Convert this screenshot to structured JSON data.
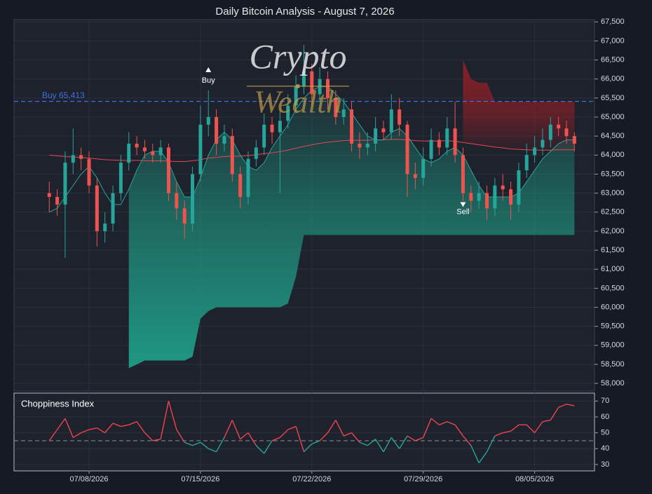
{
  "chart_data": [
    {
      "type": "candlestick",
      "title": "Daily Bitcoin Analysis - August 7, 2026",
      "watermark": [
        "Crypto",
        "Wealth"
      ],
      "categories": [
        null,
        null,
        null,
        null,
        null,
        "07/08/2026",
        null,
        null,
        null,
        null,
        null,
        null,
        null,
        null,
        null,
        null,
        null,
        null,
        null,
        "07/15/2026",
        null,
        null,
        null,
        null,
        null,
        null,
        null,
        null,
        null,
        null,
        null,
        null,
        null,
        "07/22/2026",
        null,
        null,
        null,
        null,
        null,
        null,
        null,
        null,
        null,
        null,
        null,
        null,
        null,
        "07/29/2026",
        null,
        null,
        null,
        null,
        null,
        null,
        null,
        null,
        null,
        null,
        null,
        null,
        null,
        "08/05/2026",
        null,
        null,
        null,
        null,
        null
      ],
      "open": [
        63000,
        62900,
        62700,
        63800,
        64000,
        63900,
        63200,
        62000,
        62200,
        63000,
        63800,
        64300,
        64200,
        64100,
        64000,
        64200,
        63000,
        62600,
        62200,
        63500,
        64800,
        65000,
        64300,
        64500,
        63500,
        62900,
        63900,
        64200,
        64800,
        64600,
        64900,
        65300,
        65800,
        66200,
        65600,
        66000,
        65500,
        65000,
        65200,
        64300,
        64200,
        64300,
        64700,
        64600,
        65200,
        64800,
        63500,
        63400,
        63900,
        64400,
        64200,
        64700,
        64000,
        63000,
        62800,
        63000,
        62600,
        63200,
        63100,
        62700,
        63600,
        64000,
        64200,
        64400,
        64800,
        64700,
        64500
      ],
      "high": [
        63300,
        63100,
        64100,
        64700,
        64200,
        64100,
        63400,
        62500,
        63200,
        64000,
        64600,
        64500,
        64400,
        64300,
        64400,
        64300,
        63300,
        62800,
        63700,
        65300,
        65700,
        65200,
        64800,
        64700,
        63700,
        64100,
        64400,
        65100,
        65000,
        65200,
        65600,
        66100,
        66900,
        66400,
        66300,
        66200,
        65700,
        65500,
        65400,
        64600,
        64600,
        65000,
        64900,
        65600,
        65500,
        64900,
        63800,
        64200,
        64700,
        64600,
        65000,
        65400,
        64200,
        63200,
        63300,
        63200,
        63400,
        63500,
        63300,
        63800,
        64300,
        64500,
        64700,
        65000,
        65000,
        64900,
        64600
      ],
      "low": [
        62500,
        62400,
        61300,
        63500,
        63600,
        63000,
        61600,
        61700,
        62000,
        62800,
        63600,
        64000,
        63900,
        63800,
        63800,
        62800,
        62300,
        61800,
        62000,
        63300,
        64500,
        64000,
        64100,
        63300,
        62600,
        62700,
        63700,
        64000,
        64300,
        63000,
        64700,
        65100,
        65600,
        65300,
        65400,
        65200,
        64800,
        64800,
        64100,
        63900,
        64000,
        64100,
        64400,
        64400,
        64500,
        62900,
        63100,
        63200,
        63700,
        64000,
        64000,
        63800,
        62800,
        62500,
        62600,
        62300,
        62400,
        62800,
        62300,
        62500,
        63400,
        63800,
        64000,
        64200,
        64500,
        64300,
        64100
      ],
      "close": [
        62900,
        62700,
        63800,
        64000,
        63900,
        63200,
        62000,
        62200,
        63000,
        63800,
        64300,
        64200,
        64100,
        64000,
        64200,
        63000,
        62600,
        62200,
        63500,
        64800,
        65000,
        64300,
        64500,
        63500,
        62900,
        63900,
        64200,
        64800,
        64600,
        64900,
        65300,
        65800,
        66200,
        65600,
        66000,
        65500,
        65000,
        65200,
        64300,
        64200,
        64300,
        64700,
        64600,
        65200,
        64800,
        63500,
        63400,
        63900,
        64400,
        64200,
        64700,
        64000,
        63000,
        62800,
        63000,
        62600,
        63200,
        63100,
        62700,
        63600,
        64000,
        64200,
        64400,
        64800,
        64700,
        64500,
        64300
      ],
      "up_color": "#26a69a",
      "down_color": "#ef5350",
      "lines": [
        {
          "color": "#e5484f",
          "values": [
            64000,
            63980,
            63960,
            63950,
            63940,
            63920,
            63900,
            63880,
            63870,
            63860,
            63860,
            63860,
            63850,
            63850,
            63850,
            63840,
            63830,
            63830,
            63850,
            63880,
            63920,
            63940,
            63960,
            63970,
            63970,
            63990,
            64010,
            64040,
            64060,
            64090,
            64130,
            64180,
            64230,
            64270,
            64310,
            64340,
            64360,
            64380,
            64390,
            64390,
            64390,
            64400,
            64400,
            64410,
            64410,
            64400,
            64380,
            64370,
            64370,
            64370,
            64380,
            64360,
            64330,
            64300,
            64270,
            64240,
            64210,
            64190,
            64160,
            64150,
            64140,
            64130,
            64130,
            64130,
            64140,
            64140,
            64140
          ]
        },
        {
          "color": "#26a69a",
          "values": [
            62500,
            62600,
            62900,
            63200,
            63500,
            63700,
            63400,
            63000,
            62700,
            62700,
            63100,
            63600,
            64000,
            64100,
            64100,
            63800,
            63300,
            62900,
            62900,
            63400,
            64000,
            64400,
            64600,
            64400,
            64000,
            63700,
            63600,
            63800,
            64200,
            64500,
            64800,
            65200,
            65500,
            65700,
            65800,
            65800,
            65600,
            65400,
            65100,
            64800,
            64500,
            64400,
            64400,
            64600,
            64700,
            64500,
            64200,
            63900,
            63800,
            63900,
            64100,
            64200,
            64000,
            63600,
            63200,
            62900,
            62900,
            62900,
            62900,
            63000,
            63300,
            63600,
            63900,
            64100,
            64300,
            64400,
            64400
          ]
        }
      ],
      "support": {
        "color": "#1f9e87",
        "values": [
          null,
          null,
          null,
          null,
          null,
          null,
          null,
          null,
          null,
          null,
          58400,
          58500,
          58600,
          58600,
          58600,
          58600,
          58600,
          58600,
          58700,
          59700,
          59900,
          60000,
          60000,
          60000,
          60000,
          60000,
          60000,
          60000,
          60000,
          60000,
          60100,
          60800,
          61900,
          61900,
          61900,
          61900,
          61900,
          61900,
          61900,
          61900,
          61900,
          61900,
          61900,
          61900,
          61900,
          61900,
          61900,
          61900,
          61900,
          61900,
          61900,
          61900,
          61900,
          61900,
          61900,
          61900,
          61900,
          61900,
          61900,
          61900,
          61900,
          61900,
          61900,
          61900,
          61900,
          61900,
          61900
        ]
      },
      "resistance": {
        "color": "#8e1f26",
        "values": [
          null,
          null,
          null,
          null,
          null,
          null,
          null,
          null,
          null,
          null,
          null,
          null,
          null,
          null,
          null,
          null,
          null,
          null,
          null,
          null,
          null,
          null,
          null,
          null,
          null,
          null,
          null,
          null,
          null,
          null,
          null,
          null,
          null,
          null,
          null,
          null,
          null,
          null,
          null,
          null,
          null,
          null,
          null,
          null,
          null,
          null,
          null,
          null,
          null,
          null,
          null,
          null,
          66500,
          66000,
          65900,
          65900,
          65400,
          65400,
          65400,
          65400,
          65400,
          65400,
          65400,
          65400,
          65400,
          65400,
          65400
        ]
      },
      "buy_signals": [
        null,
        null,
        null,
        null,
        null,
        null,
        null,
        null,
        null,
        null,
        null,
        null,
        null,
        null,
        null,
        null,
        null,
        null,
        null,
        null,
        "Buy",
        null,
        null,
        null,
        null,
        null,
        null,
        null,
        null,
        null,
        null,
        null,
        null,
        null,
        null,
        null,
        null,
        null,
        null,
        null,
        null,
        null,
        null,
        null,
        null,
        null,
        null,
        null,
        null,
        null,
        null,
        null,
        null,
        null,
        null,
        null,
        null,
        null,
        null,
        null,
        null,
        null,
        null,
        null,
        null,
        null,
        null
      ],
      "sell_signals": [
        null,
        null,
        null,
        null,
        null,
        null,
        null,
        null,
        null,
        null,
        null,
        null,
        null,
        null,
        null,
        null,
        null,
        null,
        null,
        null,
        null,
        null,
        null,
        null,
        null,
        null,
        null,
        null,
        null,
        null,
        null,
        null,
        null,
        null,
        null,
        null,
        null,
        null,
        null,
        null,
        null,
        null,
        null,
        null,
        null,
        null,
        null,
        null,
        null,
        null,
        null,
        null,
        "Sell",
        null,
        null,
        null,
        null,
        null,
        null,
        null,
        null,
        null,
        null,
        null,
        null,
        null,
        null
      ],
      "buy_level": {
        "value": 65413,
        "label": "Buy 65,413",
        "color": "#3f6fe0"
      },
      "ylim": [
        57800,
        67560
      ],
      "yticks": [
        {
          "value": 58000,
          "label": "58,000"
        },
        {
          "value": 58500,
          "label": "58,500"
        },
        {
          "value": 59000,
          "label": "59,000"
        },
        {
          "value": 59500,
          "label": "59,500"
        },
        {
          "value": 60000,
          "label": "60,000"
        },
        {
          "value": 60500,
          "label": "60,500"
        },
        {
          "value": 61000,
          "label": "61,000"
        },
        {
          "value": 61500,
          "label": "61,500"
        },
        {
          "value": 62000,
          "label": "62,000"
        },
        {
          "value": 62500,
          "label": "62,500"
        },
        {
          "value": 63000,
          "label": "63,000"
        },
        {
          "value": 63500,
          "label": "63,500"
        },
        {
          "value": 64000,
          "label": "64,000"
        },
        {
          "value": 64500,
          "label": "64,500"
        },
        {
          "value": 65000,
          "label": "65,000"
        },
        {
          "value": 65500,
          "label": "65,500"
        },
        {
          "value": 66000,
          "label": "66,000"
        },
        {
          "value": 66500,
          "label": "66,500"
        },
        {
          "value": 67000,
          "label": "67,000"
        },
        {
          "value": 67500,
          "label": "67,500"
        }
      ],
      "grid": true
    },
    {
      "type": "line",
      "title": "Choppiness Index",
      "values": [
        45,
        52,
        59,
        47,
        50,
        52,
        53,
        50,
        56,
        54,
        55,
        57,
        50,
        45,
        46,
        70,
        52,
        44,
        42,
        44,
        40,
        38,
        47,
        58,
        46,
        50,
        42,
        37,
        45,
        47,
        52,
        54,
        38,
        43,
        45,
        50,
        58,
        48,
        50,
        44,
        42,
        46,
        38,
        47,
        40,
        48,
        45,
        47,
        59,
        55,
        57,
        55,
        48,
        42,
        31,
        38,
        48,
        50,
        51,
        55,
        55,
        50,
        57,
        58,
        66,
        68,
        67
      ],
      "threshold": 45,
      "above_color": "#f0434f",
      "below_color": "#26a69a",
      "ylim": [
        26,
        75
      ],
      "yticks": [
        30,
        40,
        50,
        60,
        70
      ],
      "grid": true
    }
  ]
}
